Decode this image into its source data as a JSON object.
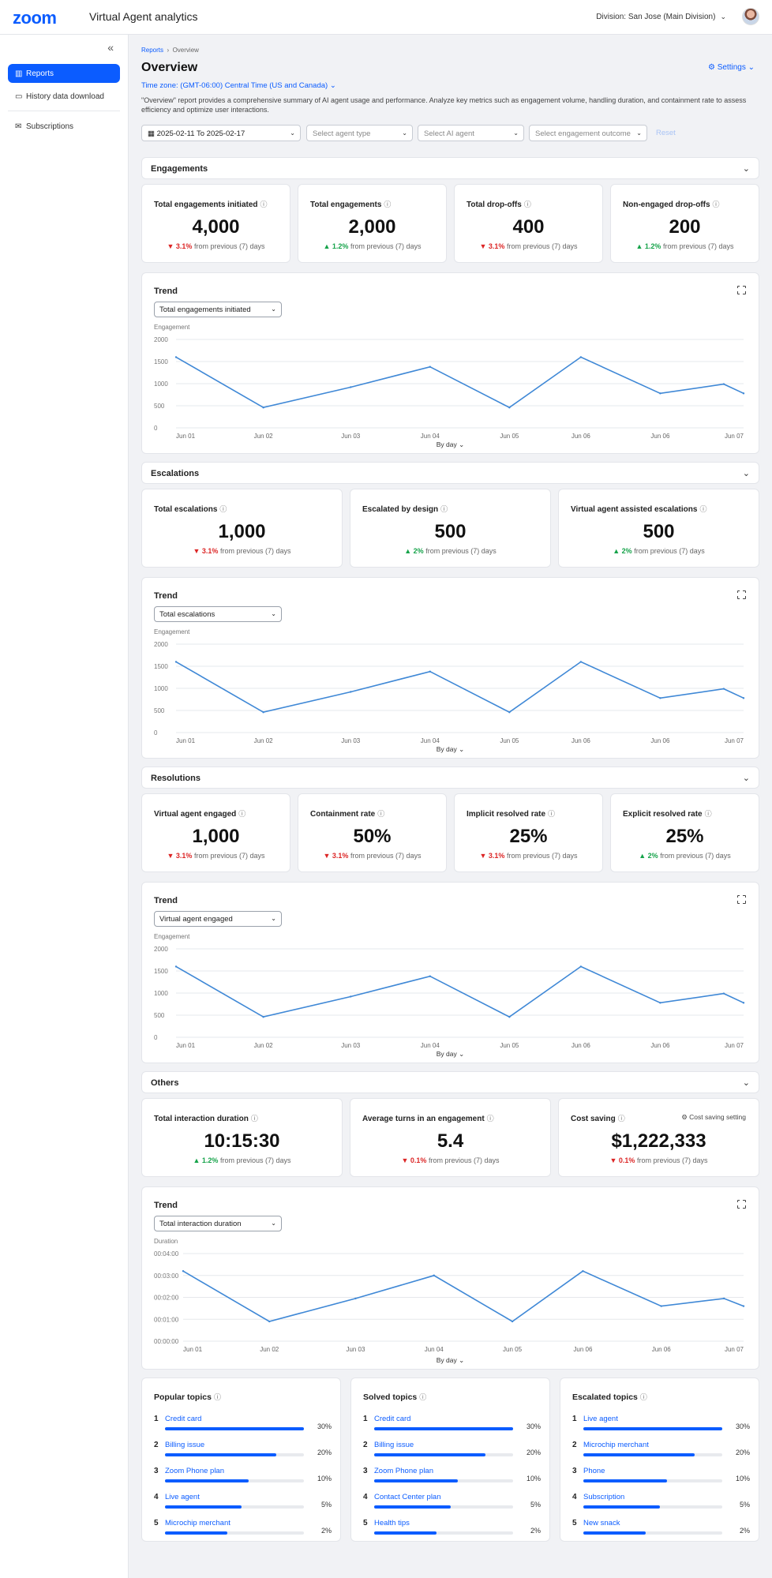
{
  "app": {
    "logo": "zoom",
    "title": "Virtual Agent analytics",
    "division": "Division: San Jose (Main Division)"
  },
  "sidebar": {
    "items": [
      {
        "label": "Reports",
        "icon": "chart-icon"
      },
      {
        "label": "History data download",
        "icon": "chat-icon"
      },
      {
        "label": "Subscriptions",
        "icon": "mail-icon"
      }
    ]
  },
  "page": {
    "breadcrumb_root": "Reports",
    "breadcrumb_current": "Overview",
    "title": "Overview",
    "settings_label": "Settings",
    "timezone": "Time zone: (GMT-06:00) Central Time (US and Canada)",
    "description": "\"Overview\" report provides a comprehensive summary of AI agent usage and performance. Analyze key metrics such as engagement volume, handling duration, and containment rate to assess efficiency and optimize user interactions."
  },
  "filters": {
    "date_range": "2025-02-11 To 2025-02-17",
    "agent_type_placeholder": "Select agent type",
    "ai_agent_placeholder": "Select AI agent",
    "outcome_placeholder": "Select engagement outcome",
    "reset_label": "Reset"
  },
  "common": {
    "trend_label": "Trend",
    "by_day_label": "By day",
    "info_glyph": "ⓘ"
  },
  "engagements": {
    "title": "Engagements",
    "cards": [
      {
        "title": "Total engagements initiated",
        "value": "4,000",
        "dir": "down",
        "delta": "3.1%",
        "suffix": "from previous (7) days"
      },
      {
        "title": "Total engagements",
        "value": "2,000",
        "dir": "up",
        "delta": "1.2%",
        "suffix": "from previous (7) days"
      },
      {
        "title": "Total drop-offs",
        "value": "400",
        "dir": "down",
        "delta": "3.1%",
        "suffix": "from previous (7) days"
      },
      {
        "title": "Non-engaged drop-offs",
        "value": "200",
        "dir": "up",
        "delta": "1.2%",
        "suffix": "from previous (7) days"
      }
    ],
    "trend_select": "Total engagements initiated"
  },
  "escalations": {
    "title": "Escalations",
    "cards": [
      {
        "title": "Total escalations",
        "value": "1,000",
        "dir": "down",
        "delta": "3.1%",
        "suffix": "from previous (7) days"
      },
      {
        "title": "Escalated by design",
        "value": "500",
        "dir": "up",
        "delta": "2%",
        "suffix": "from previous (7) days"
      },
      {
        "title": "Virtual agent assisted escalations",
        "value": "500",
        "dir": "up",
        "delta": "2%",
        "suffix": "from previous (7) days"
      }
    ],
    "trend_select": "Total escalations"
  },
  "resolutions": {
    "title": "Resolutions",
    "cards": [
      {
        "title": "Virtual agent engaged",
        "value": "1,000",
        "dir": "down",
        "delta": "3.1%",
        "suffix": "from previous (7) days"
      },
      {
        "title": "Containment rate",
        "value": "50%",
        "dir": "down",
        "delta": "3.1%",
        "suffix": "from previous (7) days"
      },
      {
        "title": "Implicit resolved rate",
        "value": "25%",
        "dir": "down",
        "delta": "3.1%",
        "suffix": "from previous (7) days"
      },
      {
        "title": "Explicit resolved rate",
        "value": "25%",
        "dir": "up",
        "delta": "2%",
        "suffix": "from previous (7) days"
      }
    ],
    "trend_select": "Virtual agent engaged"
  },
  "others": {
    "title": "Others",
    "cards": [
      {
        "title": "Total interaction duration",
        "value": "10:15:30",
        "dir": "up",
        "delta": "1.2%",
        "suffix": "from previous (7) days"
      },
      {
        "title": "Average turns in an engagement",
        "value": "5.4",
        "dir": "down",
        "delta": "0.1%",
        "suffix": "from previous (7) days"
      },
      {
        "title": "Cost saving",
        "value": "$1,222,333",
        "dir": "down",
        "delta": "0.1%",
        "suffix": "from previous (7) days"
      }
    ],
    "cost_setting_label": "Cost saving setting",
    "trend_select": "Total interaction duration"
  },
  "chart_data": [
    {
      "type": "line",
      "ylabel": "Engagement",
      "ylim": [
        0,
        2000
      ],
      "yticks": [
        "0",
        "500",
        "1000",
        "1500",
        "2000"
      ],
      "xlabel": "By day",
      "categories": [
        "Jun 01",
        "Jun 02",
        "Jun 03",
        "Jun 04",
        "Jun 05",
        "Jun 06",
        "Jun 06",
        "Jun 07"
      ],
      "x": [
        0,
        1.1,
        2.2,
        3.2,
        4.2,
        5.1,
        6.1,
        6.9,
        7.15
      ],
      "values": [
        1600,
        460,
        920,
        1380,
        460,
        1600,
        780,
        990,
        780
      ]
    },
    {
      "type": "line",
      "ylabel": "Engagement",
      "ylim": [
        0,
        2000
      ],
      "yticks": [
        "0",
        "500",
        "1000",
        "1500",
        "2000"
      ],
      "xlabel": "By day",
      "categories": [
        "Jun 01",
        "Jun 02",
        "Jun 03",
        "Jun 04",
        "Jun 05",
        "Jun 06",
        "Jun 06",
        "Jun 07"
      ],
      "x": [
        0,
        1.1,
        2.2,
        3.2,
        4.2,
        5.1,
        6.1,
        6.9,
        7.15
      ],
      "values": [
        1600,
        460,
        920,
        1380,
        460,
        1600,
        780,
        990,
        780
      ]
    },
    {
      "type": "line",
      "ylabel": "Engagement",
      "ylim": [
        0,
        2000
      ],
      "yticks": [
        "0",
        "500",
        "1000",
        "1500",
        "2000"
      ],
      "xlabel": "By day",
      "categories": [
        "Jun 01",
        "Jun 02",
        "Jun 03",
        "Jun 04",
        "Jun 05",
        "Jun 06",
        "Jun 06",
        "Jun 07"
      ],
      "x": [
        0,
        1.1,
        2.2,
        3.2,
        4.2,
        5.1,
        6.1,
        6.9,
        7.15
      ],
      "values": [
        1600,
        460,
        920,
        1380,
        460,
        1600,
        780,
        990,
        780
      ]
    },
    {
      "type": "line",
      "ylabel": "Duration",
      "ylim": [
        0,
        4
      ],
      "yticks": [
        "00:00:00",
        "00:01:00",
        "00:02:00",
        "00:03:00",
        "00:04:00"
      ],
      "xlabel": "By day",
      "categories": [
        "Jun 01",
        "Jun 02",
        "Jun 03",
        "Jun 04",
        "Jun 05",
        "Jun 06",
        "Jun 06",
        "Jun 07"
      ],
      "x": [
        0,
        1.1,
        2.2,
        3.2,
        4.2,
        5.1,
        6.1,
        6.9,
        7.15
      ],
      "values": [
        3.2,
        0.9,
        1.95,
        3.0,
        0.9,
        3.2,
        1.6,
        1.95,
        1.6
      ]
    }
  ],
  "topics": [
    {
      "title": "Popular topics",
      "items": [
        {
          "rank": "1",
          "name": "Credit card",
          "pct": "30%",
          "fill": 1.0
        },
        {
          "rank": "2",
          "name": "Billing issue",
          "pct": "20%",
          "fill": 0.8
        },
        {
          "rank": "3",
          "name": "Zoom Phone plan",
          "pct": "10%",
          "fill": 0.6
        },
        {
          "rank": "4",
          "name": "Live agent",
          "pct": "5%",
          "fill": 0.55
        },
        {
          "rank": "5",
          "name": "Microchip merchant",
          "pct": "2%",
          "fill": 0.45
        }
      ]
    },
    {
      "title": "Solved topics",
      "items": [
        {
          "rank": "1",
          "name": "Credit card",
          "pct": "30%",
          "fill": 1.0
        },
        {
          "rank": "2",
          "name": "Billing issue",
          "pct": "20%",
          "fill": 0.8
        },
        {
          "rank": "3",
          "name": "Zoom Phone plan",
          "pct": "10%",
          "fill": 0.6
        },
        {
          "rank": "4",
          "name": "Contact Center plan",
          "pct": "5%",
          "fill": 0.55
        },
        {
          "rank": "5",
          "name": "Health tips",
          "pct": "2%",
          "fill": 0.45
        }
      ]
    },
    {
      "title": "Escalated topics",
      "items": [
        {
          "rank": "1",
          "name": "Live agent",
          "pct": "30%",
          "fill": 1.0
        },
        {
          "rank": "2",
          "name": "Microchip merchant",
          "pct": "20%",
          "fill": 0.8
        },
        {
          "rank": "3",
          "name": "Phone",
          "pct": "10%",
          "fill": 0.6
        },
        {
          "rank": "4",
          "name": "Subscription",
          "pct": "5%",
          "fill": 0.55
        },
        {
          "rank": "5",
          "name": "New snack",
          "pct": "2%",
          "fill": 0.45
        }
      ]
    }
  ],
  "colors": {
    "accent": "#0b5cff",
    "line": "#3f88d6",
    "up": "#16a34a",
    "down": "#dc2626"
  }
}
